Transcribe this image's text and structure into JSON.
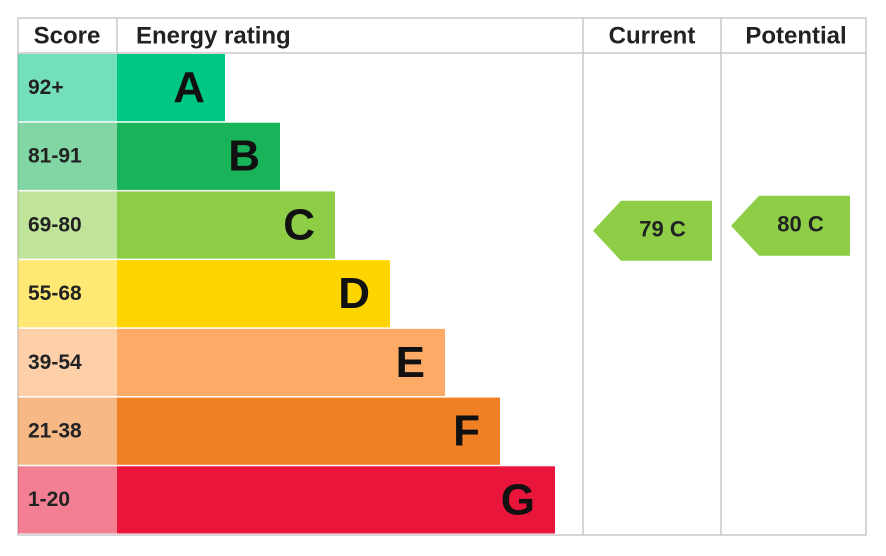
{
  "header": {
    "score": "Score",
    "rating": "Energy rating",
    "current": "Current",
    "potential": "Potential"
  },
  "bands": [
    {
      "score": "92+",
      "letter": "A",
      "color": "#00c781"
    },
    {
      "score": "81-91",
      "letter": "B",
      "color": "#19b459"
    },
    {
      "score": "69-80",
      "letter": "C",
      "color": "#8dce46"
    },
    {
      "score": "55-68",
      "letter": "D",
      "color": "#ffd500"
    },
    {
      "score": "39-54",
      "letter": "E",
      "color": "#fcaa65"
    },
    {
      "score": "21-38",
      "letter": "F",
      "color": "#ef8023"
    },
    {
      "score": "1-20",
      "letter": "G",
      "color": "#e9153b"
    }
  ],
  "current": "79 C",
  "potential": "80 C"
}
